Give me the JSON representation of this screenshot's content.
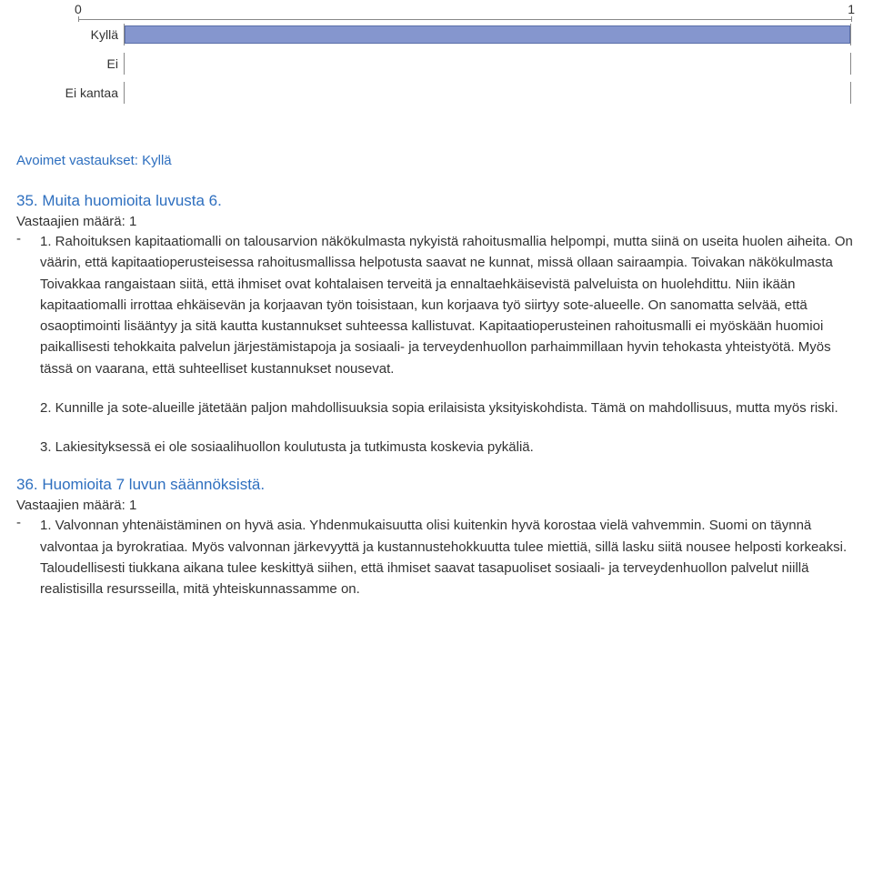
{
  "chart": {
    "type": "bar",
    "axis": {
      "min": 0,
      "max": 1,
      "ticks": [
        {
          "label": "0",
          "pos_pct": 0
        },
        {
          "label": "1",
          "pos_pct": 100
        }
      ],
      "tick_color": "#888888",
      "label_color": "#333333",
      "label_fontsize": 14
    },
    "rows": [
      {
        "label": "Kyllä",
        "value": 1,
        "width_pct": 100
      },
      {
        "label": "Ei",
        "value": 0,
        "width_pct": 0
      },
      {
        "label": "Ei kantaa",
        "value": 0,
        "width_pct": 0
      }
    ],
    "bar_color": "#8596ce",
    "bar_border_color": "#5b6fa9",
    "track_border_color": "#888888",
    "background_color": "#ffffff",
    "row_label_fontsize": 14
  },
  "open_answers_heading": "Avoimet vastaukset: Kyllä",
  "section35": {
    "title": "35. Muita huomioita luvusta 6.",
    "respondents": "Vastaajien määrä: 1",
    "dash": "-",
    "para1": "1. Rahoituksen kapitaatiomalli on talousarvion näkökulmasta nykyistä rahoitusmallia helpompi, mutta siinä on useita huolen aiheita. On väärin, että kapitaatioperusteisessa rahoitusmallissa helpotusta saavat ne kunnat, missä ollaan sairaampia. Toivakan näkökulmasta Toivakkaa rangaistaan siitä, että ihmiset ovat kohtalaisen terveitä ja ennaltaehkäisevistä palveluista on huolehdittu. Niin ikään kapitaatiomalli irrottaa ehkäisevän ja korjaavan työn toisistaan, kun korjaava työ siirtyy sote-alueelle. On sanomatta selvää, että osaoptimointi lisääntyy ja sitä kautta kustannukset suhteessa kallistuvat. Kapitaatioperusteinen rahoitusmalli ei myöskään huomioi paikallisesti tehokkaita palvelun järjestämistapoja ja sosiaali- ja terveydenhuollon parhaimmillaan hyvin tehokasta yhteistyötä. Myös tässä on vaarana, että suhteelliset kustannukset nousevat.",
    "para2": "2. Kunnille ja sote-alueille jätetään paljon mahdollisuuksia sopia erilaisista yksityiskohdista. Tämä on mahdollisuus, mutta myös riski.",
    "para3": "3. Lakiesityksessä ei ole sosiaalihuollon koulutusta ja tutkimusta koskevia pykäliä."
  },
  "section36": {
    "title": "36. Huomioita 7 luvun säännöksistä.",
    "respondents": "Vastaajien määrä: 1",
    "dash": "-",
    "para1": "1. Valvonnan yhtenäistäminen on hyvä asia. Yhdenmukaisuutta olisi kuitenkin hyvä korostaa vielä vahvemmin. Suomi on täynnä valvontaa ja byrokratiaa. Myös valvonnan järkevyyttä ja kustannustehokkuutta tulee miettiä, sillä lasku siitä nousee helposti korkeaksi. Taloudellisesti tiukkana aikana tulee keskittyä siihen, että ihmiset saavat tasapuoliset sosiaali- ja terveydenhuollon palvelut niillä realistisilla resursseilla, mitä yhteiskunnassamme on."
  },
  "colors": {
    "link_blue": "#2e6fbf",
    "text": "#333333"
  }
}
